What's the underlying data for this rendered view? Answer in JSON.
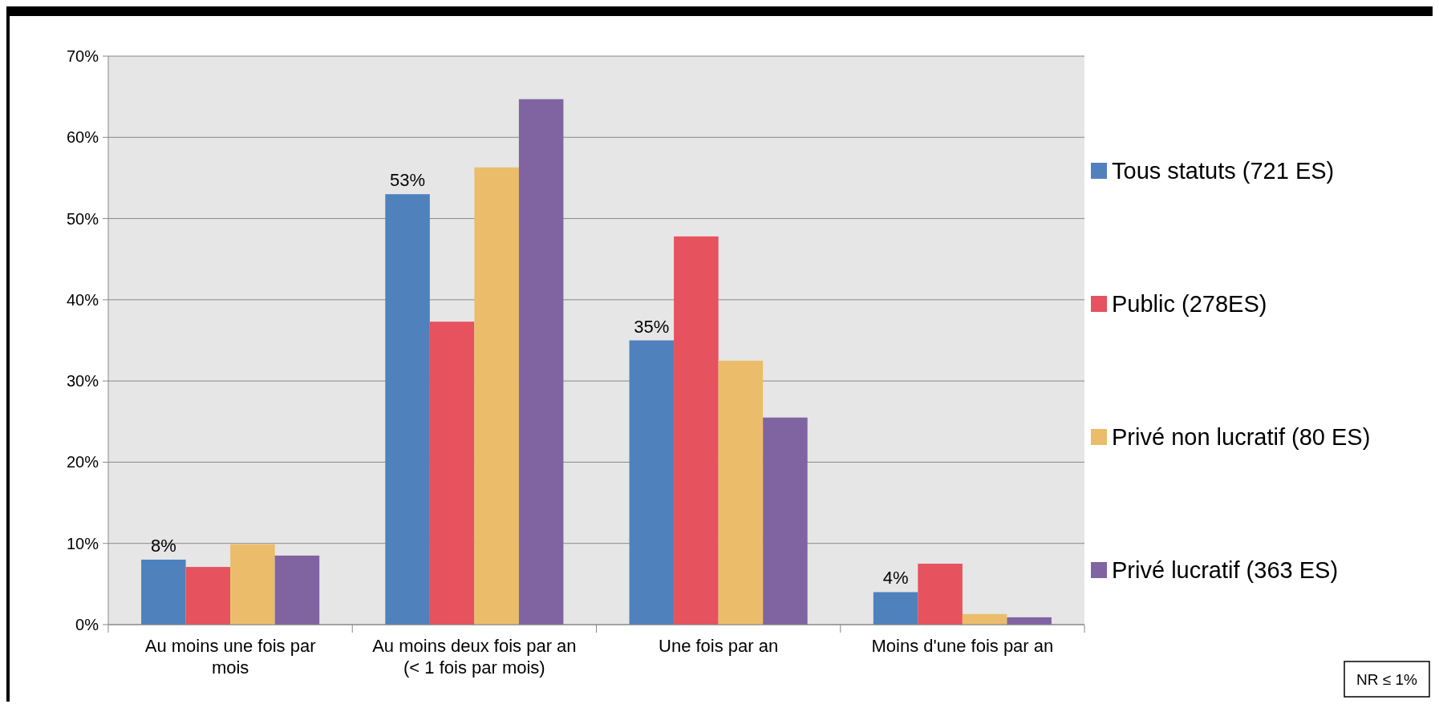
{
  "chart_data": {
    "type": "bar",
    "categories": [
      "Au moins une fois par mois",
      "Au moins deux fois par an (< 1 fois par mois)",
      "Une fois par an",
      "Moins d'une fois par an"
    ],
    "series": [
      {
        "name": "Tous statuts (721 ES)",
        "color": "#4f81bd",
        "values": [
          8,
          53,
          35,
          4
        ],
        "value_labels": [
          "8%",
          "53%",
          "35%",
          "4%"
        ]
      },
      {
        "name": "Public (278ES)",
        "color": "#e6525e",
        "values": [
          7.1,
          37.3,
          47.8,
          7.5
        ]
      },
      {
        "name": "Privé non lucratif (80 ES)",
        "color": "#ebbd6a",
        "values": [
          9.9,
          56.3,
          32.5,
          1.3
        ]
      },
      {
        "name": "Privé lucratif (363 ES)",
        "color": "#8064a2",
        "values": [
          8.5,
          64.7,
          25.5,
          0.9
        ]
      }
    ],
    "ylim": [
      0,
      70
    ],
    "yticks": [
      {
        "value": 0,
        "label": "0%"
      },
      {
        "value": 10,
        "label": "10%"
      },
      {
        "value": 20,
        "label": "20%"
      },
      {
        "value": 30,
        "label": "30%"
      },
      {
        "value": 40,
        "label": "40%"
      },
      {
        "value": 50,
        "label": "50%"
      },
      {
        "value": 60,
        "label": "60%"
      },
      {
        "value": 70,
        "label": "70%"
      }
    ],
    "grid": "y",
    "legend": "right",
    "annotations": [
      "NR ≤ 1%"
    ]
  }
}
